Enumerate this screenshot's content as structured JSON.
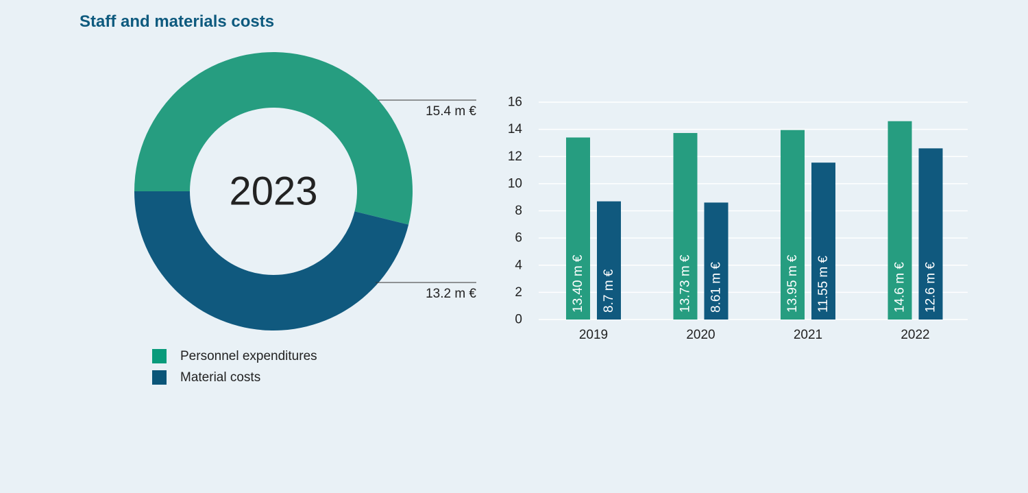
{
  "title": "Staff and materials costs",
  "colors": {
    "personnel": "#269d80",
    "material": "#10597e",
    "background": "#e9f1f6"
  },
  "legend": [
    {
      "label": "Personnel expenditures",
      "color": "#099b7b"
    },
    {
      "label": "Material costs",
      "color": "#0a5578"
    }
  ],
  "chart_data": [
    {
      "type": "pie",
      "title": "",
      "center_label": "2023",
      "slices": [
        {
          "name": "Personnel expenditures",
          "value": 15.4,
          "label": "15.4 m €"
        },
        {
          "name": "Material costs",
          "value": 13.2,
          "label": "13.2 m €"
        }
      ]
    },
    {
      "type": "bar",
      "title": "",
      "xlabel": "",
      "ylabel": "",
      "categories": [
        "2019",
        "2020",
        "2021",
        "2022"
      ],
      "ylim": [
        0,
        16
      ],
      "yticks": [
        0,
        2,
        4,
        6,
        8,
        10,
        12,
        14,
        16
      ],
      "grid": true,
      "series": [
        {
          "name": "Personnel expenditures",
          "values": [
            13.4,
            13.73,
            13.95,
            14.6
          ],
          "labels": [
            "13.40 m €",
            "13.73 m €",
            "13.95 m €",
            "14.6 m €"
          ]
        },
        {
          "name": "Material costs",
          "values": [
            8.7,
            8.61,
            11.55,
            12.6
          ],
          "labels": [
            "8.7 m €",
            "8.61 m €",
            "11.55 m €",
            "12.6 m €"
          ]
        }
      ]
    }
  ]
}
